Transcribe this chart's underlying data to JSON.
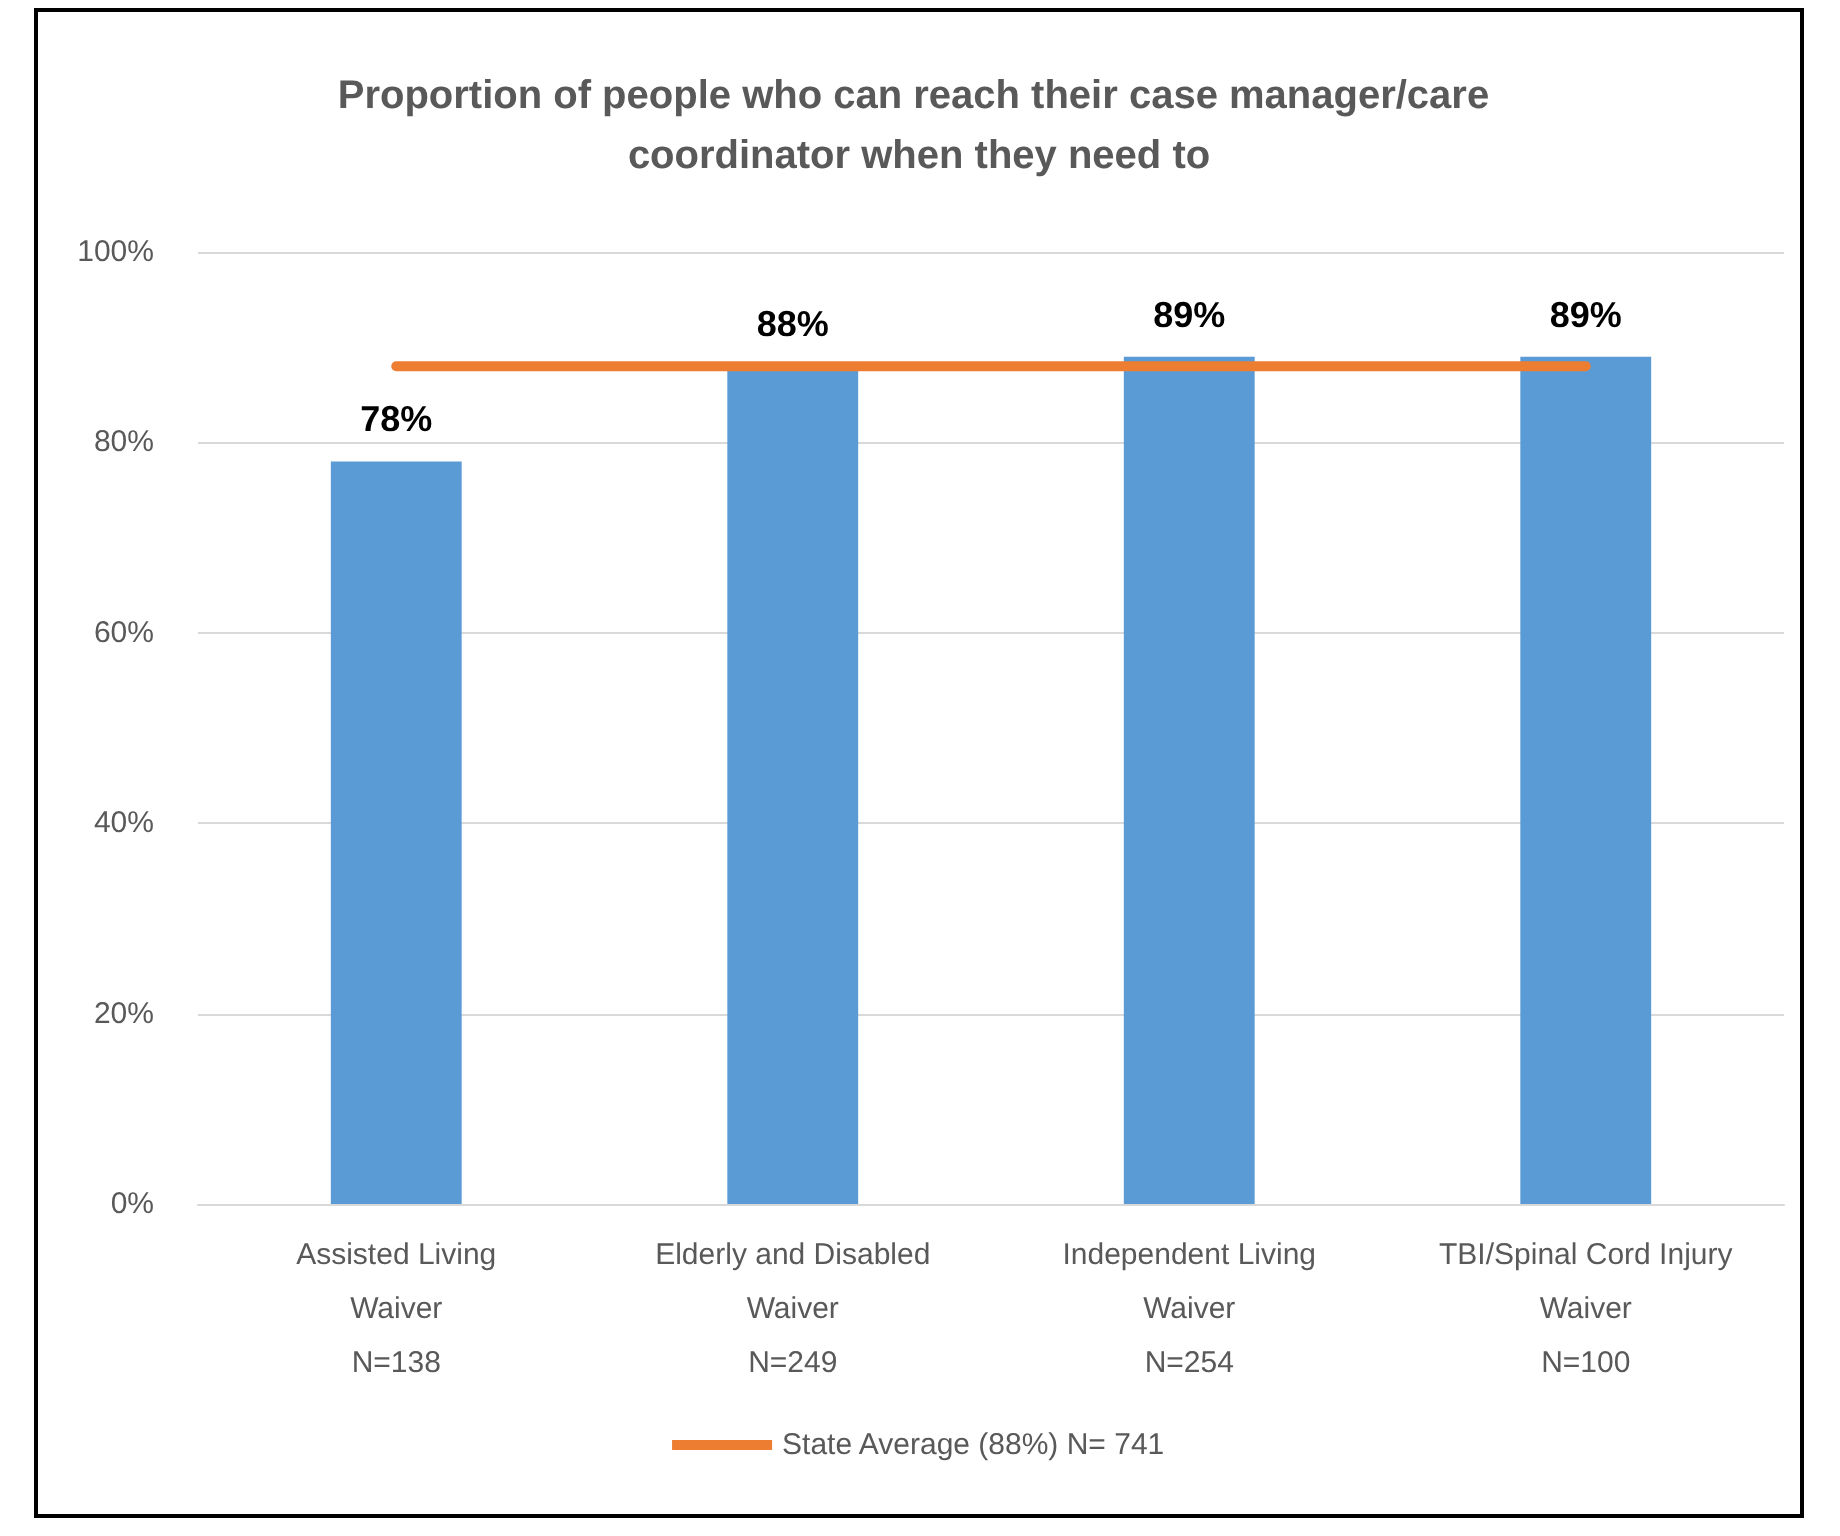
{
  "chart_data": {
    "type": "bar",
    "title": "Proportion of people who can reach their case manager/care coordinator when they need to",
    "categories": [
      "Assisted Living\nWaiver\nN=138",
      "Elderly and Disabled\nWaiver\nN=249",
      "Independent Living\nWaiver\nN=254",
      "TBI/Spinal Cord Injury\nWaiver\nN=100"
    ],
    "series": [
      {
        "color": "#5b9bd5",
        "values": [
          78,
          88,
          89,
          89
        ],
        "value_labels": [
          "78%",
          "88%",
          "89%",
          "89%"
        ]
      },
      {
        "type": "line",
        "name": "State Average (88%) N= 741",
        "color": "#ed7d31",
        "values": [
          88,
          88,
          88,
          88
        ]
      }
    ],
    "ylim": [
      0,
      100
    ],
    "yticks": [
      {
        "value": 0,
        "label": "0%"
      },
      {
        "value": 20,
        "label": "20%"
      },
      {
        "value": 40,
        "label": "40%"
      },
      {
        "value": 60,
        "label": "60%"
      },
      {
        "value": 80,
        "label": "80%"
      },
      {
        "value": 100,
        "label": "100%"
      }
    ],
    "grid": "y",
    "legend": "bottom",
    "marker": "none",
    "line_style": "solid"
  }
}
